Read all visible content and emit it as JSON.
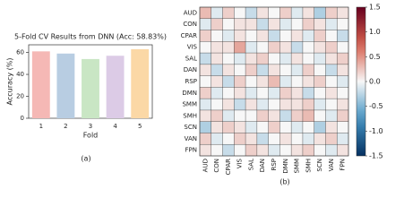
{
  "chart_data": [
    {
      "type": "bar",
      "title": "5-Fold CV Results from DNN (Acc: 58.83%)",
      "x_label": "Fold",
      "y_label": "Accuracy (%)",
      "caption": "(a)",
      "categories": [
        "1",
        "2",
        "3",
        "4",
        "5"
      ],
      "values": [
        61,
        59,
        54,
        57,
        63
      ],
      "colors": [
        "#f5b8b5",
        "#b8cde2",
        "#c9e6c4",
        "#dccbe6",
        "#fbd8a6"
      ],
      "ylim": [
        0,
        67
      ],
      "yticks": [
        0,
        20,
        40,
        60
      ]
    },
    {
      "type": "heatmap",
      "caption": "(b)",
      "categories": [
        "AUD",
        "CON",
        "CPAR",
        "VIS",
        "SAL",
        "DAN",
        "RSP",
        "DMN",
        "SMM",
        "SMH",
        "SCN",
        "VAN",
        "FPN"
      ],
      "values": [
        [
          0.3,
          -0.1,
          0.2,
          0.0,
          -0.2,
          0.1,
          0.0,
          0.2,
          -0.1,
          0.1,
          -0.3,
          0.2,
          0.1
        ],
        [
          -0.1,
          0.2,
          0.0,
          0.1,
          0.1,
          -0.2,
          0.1,
          -0.1,
          0.0,
          0.2,
          0.1,
          -0.1,
          0.0
        ],
        [
          0.2,
          0.0,
          -0.1,
          0.1,
          0.0,
          0.1,
          -0.2,
          0.0,
          0.1,
          -0.1,
          0.2,
          0.0,
          -0.2
        ],
        [
          0.0,
          0.1,
          0.1,
          0.4,
          -0.1,
          0.0,
          0.2,
          0.1,
          -0.2,
          0.0,
          0.1,
          0.2,
          0.0
        ],
        [
          -0.2,
          0.1,
          0.0,
          -0.1,
          0.1,
          0.2,
          0.0,
          -0.1,
          0.1,
          0.0,
          -0.1,
          0.1,
          0.2
        ],
        [
          0.1,
          -0.2,
          0.1,
          0.0,
          0.2,
          -0.2,
          0.1,
          0.0,
          -0.1,
          0.2,
          0.0,
          -0.2,
          0.1
        ],
        [
          0.0,
          0.1,
          -0.2,
          0.2,
          0.0,
          0.1,
          0.3,
          -0.1,
          0.0,
          0.1,
          0.2,
          0.0,
          -0.1
        ],
        [
          0.2,
          -0.1,
          0.0,
          0.1,
          -0.1,
          0.0,
          -0.1,
          0.2,
          0.1,
          -0.2,
          0.0,
          0.1,
          0.0
        ],
        [
          -0.1,
          0.0,
          0.1,
          -0.2,
          0.1,
          -0.1,
          0.0,
          0.1,
          0.1,
          0.2,
          -0.1,
          0.0,
          0.1
        ],
        [
          0.1,
          0.2,
          -0.1,
          0.0,
          0.0,
          0.2,
          0.1,
          -0.2,
          0.2,
          0.3,
          0.0,
          -0.1,
          0.2
        ],
        [
          -0.3,
          0.1,
          0.2,
          0.1,
          -0.1,
          0.0,
          0.2,
          0.0,
          -0.1,
          0.0,
          -0.3,
          0.1,
          0.0
        ],
        [
          0.2,
          -0.1,
          0.0,
          0.2,
          0.1,
          -0.2,
          0.0,
          0.1,
          0.0,
          -0.1,
          0.1,
          0.2,
          -0.1
        ],
        [
          0.1,
          0.0,
          -0.2,
          0.0,
          0.2,
          0.1,
          -0.1,
          0.0,
          0.1,
          0.2,
          0.0,
          -0.1,
          0.1
        ]
      ],
      "clim": [
        -1.5,
        1.5
      ],
      "colorbar_ticks": [
        1.5,
        1.0,
        0.5,
        0.0,
        -0.5,
        -1.0,
        -1.5
      ]
    }
  ]
}
